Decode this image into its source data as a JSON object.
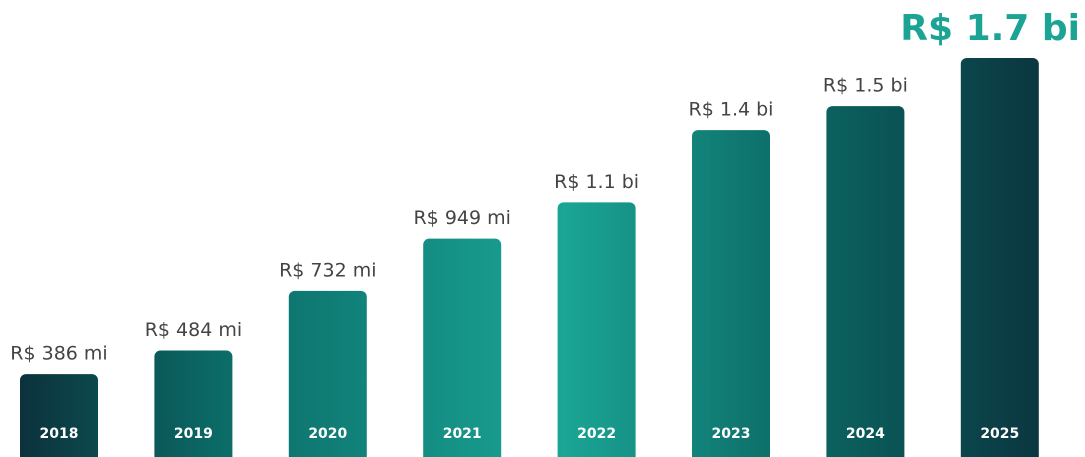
{
  "chart_data": {
    "type": "bar",
    "categories": [
      "2018",
      "2019",
      "2020",
      "2021",
      "2022",
      "2023",
      "2024",
      "2025"
    ],
    "values": [
      386,
      484,
      732,
      949,
      1100,
      1400,
      1500,
      1700
    ],
    "value_labels": [
      "R$ 386 mi",
      "R$ 484 mi",
      "R$ 732 mi",
      "R$ 949 mi",
      "R$ 1.1 bi",
      "R$ 1.4 bi",
      "R$ 1.5 bi",
      "R$ 1.7 bi"
    ],
    "highlight_color": "#1ba494"
  }
}
